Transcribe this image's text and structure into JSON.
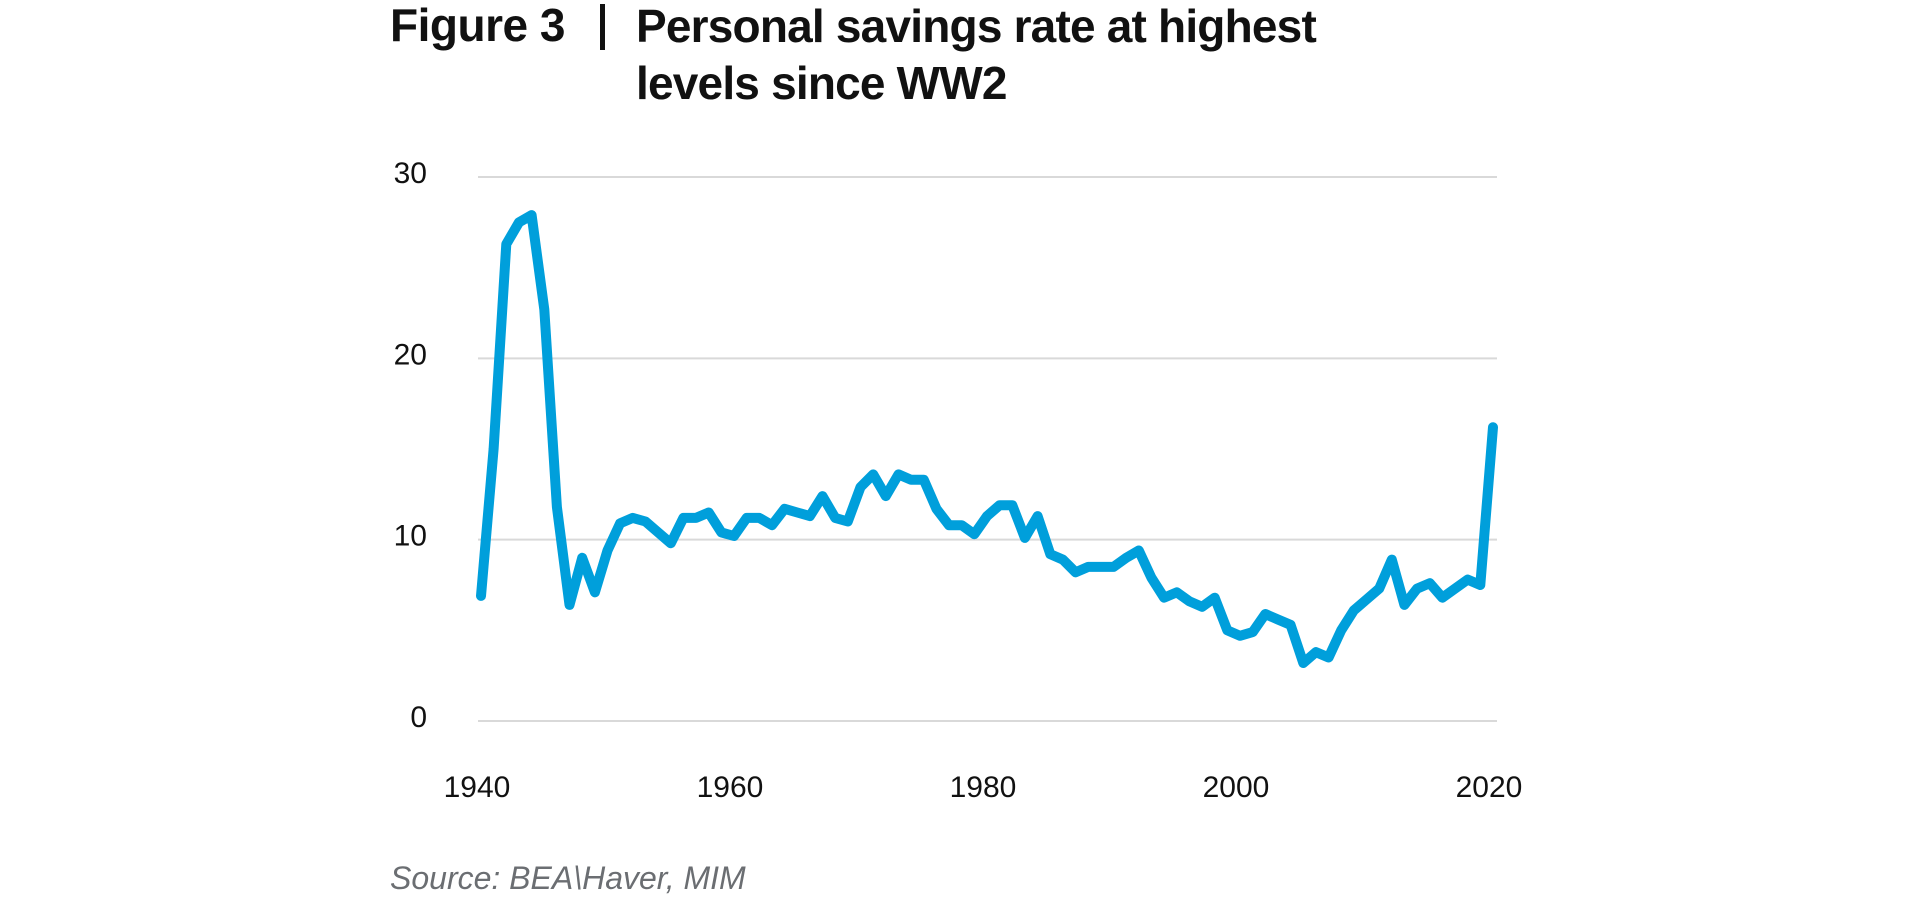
{
  "title": {
    "prefix": "Figure 3",
    "line1": "Personal savings rate at highest",
    "line2": "levels since WW2"
  },
  "source": "Source: BEA\\Haver, MIM",
  "colors": {
    "line": "#009fdb",
    "grid": "#d9d9d9",
    "text": "#111111",
    "source": "#6b6e72"
  },
  "chart_data": {
    "type": "line",
    "title": "Personal savings rate at highest levels since WW2",
    "xlabel": "",
    "ylabel": "",
    "xlim": [
      1940,
      2020
    ],
    "ylim": [
      0,
      30
    ],
    "grid": true,
    "legend": "none",
    "x_ticks": [
      "1940",
      "1960",
      "1980",
      "2000",
      "2020"
    ],
    "y_ticks": [
      "0",
      "10",
      "20",
      "30"
    ],
    "series": [
      {
        "name": "Personal savings rate",
        "x": [
          1940,
          1941,
          1942,
          1943,
          1944,
          1945,
          1946,
          1947,
          1948,
          1949,
          1950,
          1951,
          1952,
          1953,
          1954,
          1955,
          1956,
          1957,
          1958,
          1959,
          1960,
          1961,
          1962,
          1963,
          1964,
          1965,
          1966,
          1967,
          1968,
          1969,
          1970,
          1971,
          1972,
          1973,
          1974,
          1975,
          1976,
          1977,
          1978,
          1979,
          1980,
          1981,
          1982,
          1983,
          1984,
          1985,
          1986,
          1987,
          1988,
          1989,
          1990,
          1991,
          1992,
          1993,
          1994,
          1995,
          1996,
          1997,
          1998,
          1999,
          2000,
          2001,
          2002,
          2003,
          2004,
          2005,
          2006,
          2007,
          2008,
          2009,
          2010,
          2011,
          2012,
          2013,
          2014,
          2015,
          2016,
          2017,
          2018,
          2019,
          2020
        ],
        "values": [
          6.9,
          15.0,
          26.3,
          27.5,
          27.9,
          22.7,
          11.8,
          6.4,
          9.0,
          7.1,
          9.4,
          10.9,
          11.2,
          11.0,
          10.4,
          9.8,
          11.2,
          11.2,
          11.5,
          10.4,
          10.2,
          11.2,
          11.2,
          10.8,
          11.7,
          11.5,
          11.3,
          12.4,
          11.2,
          11.0,
          12.9,
          13.6,
          12.4,
          13.6,
          13.3,
          13.3,
          11.7,
          10.8,
          10.8,
          10.3,
          11.3,
          11.9,
          11.9,
          10.1,
          11.3,
          9.2,
          8.9,
          8.2,
          8.5,
          8.5,
          8.5,
          9.0,
          9.4,
          7.9,
          6.8,
          7.1,
          6.6,
          6.3,
          6.8,
          5.0,
          4.7,
          4.9,
          5.9,
          5.6,
          5.3,
          3.2,
          3.8,
          3.5,
          5.0,
          6.1,
          6.7,
          7.3,
          8.9,
          6.4,
          7.3,
          7.6,
          6.8,
          7.3,
          7.8,
          7.5,
          16.2
        ]
      }
    ]
  }
}
